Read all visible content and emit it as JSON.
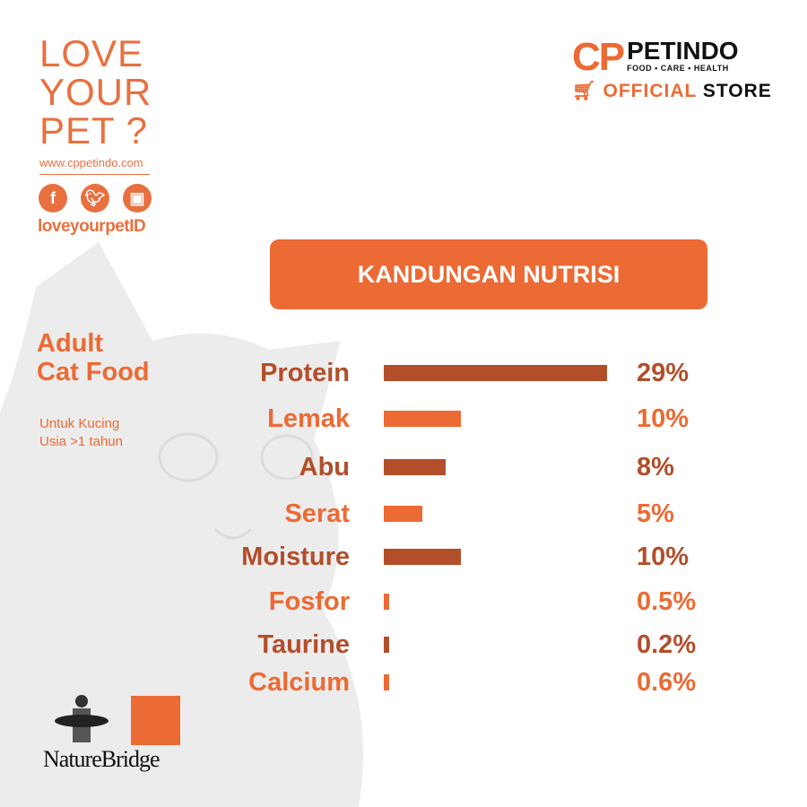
{
  "brand": {
    "slogan_lines": [
      "LOVE",
      "YOUR",
      "PET ?"
    ],
    "website": "www.cppetindo.com",
    "social_icons": [
      "facebook-icon",
      "twitter-icon",
      "instagram-icon"
    ],
    "handle": "loveyourpetID"
  },
  "logo": {
    "cp": "CP",
    "name": "PETINDO",
    "tagline": "FOOD • CARE • HEALTH",
    "official": "OFFICIAL",
    "store": "STORE"
  },
  "product": {
    "title_lines": [
      "Adult",
      "Cat Food"
    ],
    "subtitle_lines": [
      "Untuk Kucing",
      "Usia >1 tahun"
    ]
  },
  "footer_logo": "NatureBridge",
  "colors": {
    "accent": "#ec6a33",
    "dark": "#b24e2a"
  },
  "chart_data": {
    "type": "bar",
    "orientation": "horizontal",
    "title": "KANDUNGAN NUTRISI",
    "categories": [
      "Protein",
      "Lemak",
      "Abu",
      "Serat",
      "Moisture",
      "Fosfor",
      "Taurine",
      "Calcium"
    ],
    "values": [
      29,
      10,
      8,
      5,
      10,
      0.5,
      0.2,
      0.6
    ],
    "value_labels": [
      "29%",
      "10%",
      "8%",
      "5%",
      "10%",
      "0.5%",
      "0.2%",
      "0.6%"
    ],
    "unit": "%",
    "grid": false,
    "bar_colors": [
      "#b24e2a",
      "#ec6a33"
    ]
  }
}
